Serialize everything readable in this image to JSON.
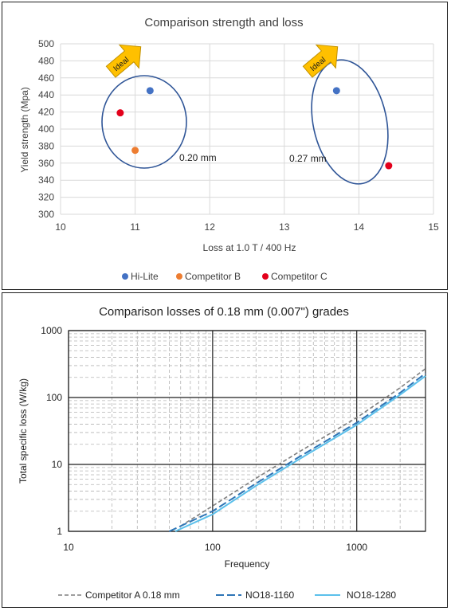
{
  "chart_data": [
    {
      "type": "scatter",
      "title": "Comparison strength and loss",
      "xlabel": "Loss at 1.0 T / 400 Hz",
      "ylabel": "Yield strength (Mpa)",
      "xlim": [
        10,
        15
      ],
      "ylim": [
        300,
        500
      ],
      "x_ticks": [
        "10",
        "11",
        "12",
        "13",
        "14",
        "15"
      ],
      "y_ticks": [
        "300",
        "320",
        "340",
        "360",
        "380",
        "400",
        "420",
        "440",
        "460",
        "480",
        "500"
      ],
      "grid": true,
      "legend_position": "bottom",
      "series": [
        {
          "name": "Hi-Lite",
          "color": "#4472c4",
          "points": [
            [
              11.2,
              445
            ],
            [
              13.7,
              445
            ]
          ]
        },
        {
          "name": "Competitor B",
          "color": "#ed7d31",
          "points": [
            [
              11.0,
              375
            ]
          ]
        },
        {
          "name": "Competitor C",
          "color": "#e3001b",
          "points": [
            [
              10.8,
              419
            ],
            [
              14.4,
              357
            ]
          ]
        }
      ],
      "annotations": [
        {
          "text": "0.20 mm"
        },
        {
          "text": "0.27 mm"
        },
        {
          "text": "Ideal"
        },
        {
          "text": "Ideal"
        }
      ],
      "arrow_color": "#ffc000",
      "ellipse_color": "#2f5597"
    },
    {
      "type": "line",
      "title": "Comparison losses of 0.18 mm (0.007\") grades",
      "xlabel": "Frequency",
      "ylabel": "Total specific loss (W/kg)",
      "x_scale": "log",
      "y_scale": "log",
      "xlim": [
        10,
        3000
      ],
      "ylim": [
        1,
        1000
      ],
      "x_ticks": [
        "10",
        "100",
        "1000"
      ],
      "y_ticks": [
        "1",
        "10",
        "100",
        "1000"
      ],
      "grid": true,
      "legend_position": "bottom",
      "series": [
        {
          "name": "Competitor A 0.18 mm",
          "color": "#7f7f7f",
          "style": "dashed",
          "x": [
            60,
            100,
            200,
            400,
            1000,
            2000,
            3000
          ],
          "y": [
            1.2,
            2.4,
            6.2,
            15.5,
            50,
            140,
            270
          ]
        },
        {
          "name": "NO18-1160",
          "color": "#2e75b6",
          "style": "longdash",
          "x": [
            50,
            100,
            200,
            400,
            1000,
            2000,
            3000
          ],
          "y": [
            1.0,
            2.0,
            5.2,
            13,
            42,
            118,
            230
          ]
        },
        {
          "name": "NO18-1280",
          "color": "#5bc0eb",
          "style": "solid",
          "x": [
            55,
            100,
            200,
            400,
            1000,
            2000,
            3000
          ],
          "y": [
            1.0,
            1.8,
            4.8,
            12,
            39,
            110,
            210
          ]
        }
      ]
    }
  ]
}
